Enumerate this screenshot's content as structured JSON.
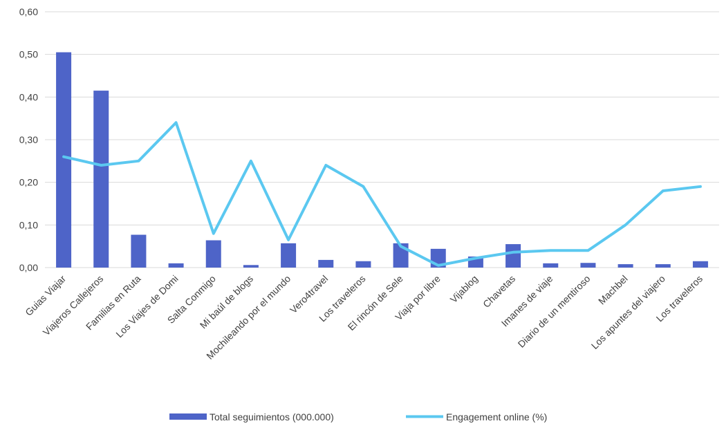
{
  "chart_data": {
    "type": "bar",
    "categories": [
      "Guias Viajar",
      "Viajeros Callejeros",
      "Familias en Ruta",
      "Los  Viajes de  Domi",
      "Salta Conmigo",
      "Mi baúl de blogs",
      "Mochileando por el mundo",
      "Vero4travel",
      "Los  traveleros",
      "El  rincón de Sele",
      "Viaja por libre",
      "Vijablog",
      "Chavetas",
      "Imanes de viaje",
      "Diario de un mentiroso",
      "Machbel",
      "Los apuntes del viajero",
      "Los traveleros"
    ],
    "series": [
      {
        "name": "Total seguimientos (000.000)",
        "type": "bar",
        "color": "#4e64c8",
        "values": [
          0.505,
          0.415,
          0.077,
          0.01,
          0.064,
          0.006,
          0.057,
          0.018,
          0.015,
          0.057,
          0.044,
          0.026,
          0.055,
          0.01,
          0.011,
          0.008,
          0.008,
          0.015
        ]
      },
      {
        "name": "Engagement online (%)",
        "type": "line",
        "color": "#5bc8f0",
        "values": [
          0.26,
          0.24,
          0.25,
          0.34,
          0.08,
          0.25,
          0.065,
          0.24,
          0.19,
          0.05,
          0.005,
          0.022,
          0.036,
          0.04,
          0.04,
          0.1,
          0.18,
          0.19
        ]
      }
    ],
    "ylim": [
      0,
      0.6
    ],
    "yticks": [
      "0,00",
      "0,10",
      "0,20",
      "0,30",
      "0,40",
      "0,50",
      "0,60"
    ],
    "grid": true,
    "legend_position": "bottom",
    "title": "",
    "xlabel": "",
    "ylabel": ""
  }
}
